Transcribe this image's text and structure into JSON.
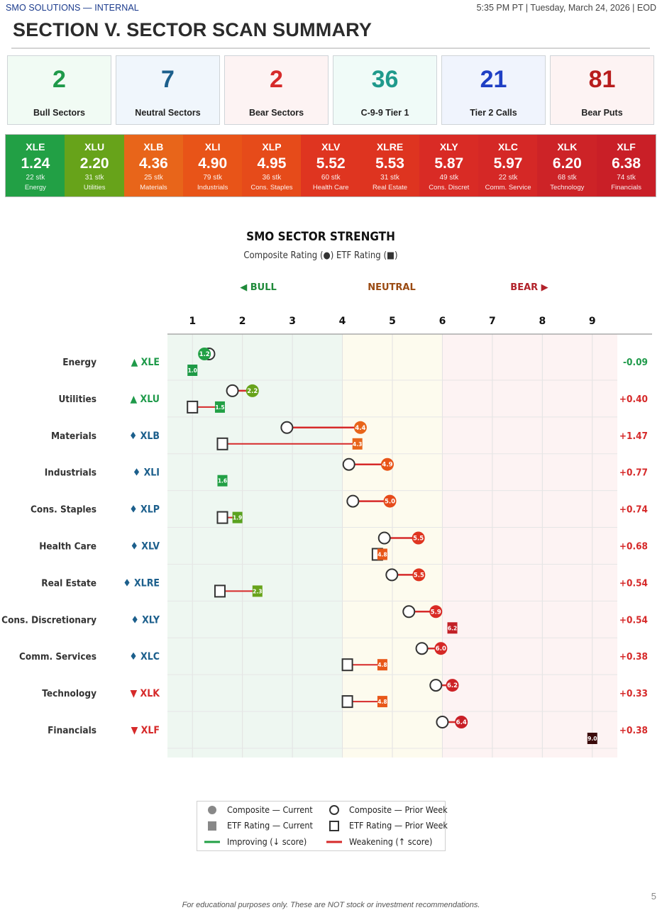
{
  "header": {
    "org": "SMO SOLUTIONS — INTERNAL",
    "timestamp": "5:35 PM PT | Tuesday, March 24, 2026 | EOD",
    "title": "SECTION V. SECTOR SCAN SUMMARY"
  },
  "stats": [
    {
      "value": "2",
      "label": "Bull Sectors",
      "color": "#1f9a4a",
      "bg": "#f1fbf4"
    },
    {
      "value": "7",
      "label": "Neutral Sectors",
      "color": "#1c5f8c",
      "bg": "#f0f6fc"
    },
    {
      "value": "2",
      "label": "Bear Sectors",
      "color": "#d62a2a",
      "bg": "#fdf3f3"
    },
    {
      "value": "36",
      "label": "C-9-9 Tier 1",
      "color": "#1f9a8c",
      "bg": "#f0fbf8"
    },
    {
      "value": "21",
      "label": "Tier 2 Calls",
      "color": "#1f3fc4",
      "bg": "#f0f4fd"
    },
    {
      "value": "81",
      "label": "Bear Puts",
      "color": "#b81d1d",
      "bg": "#fdf3f3"
    }
  ],
  "heatmap": [
    {
      "ticker": "XLE",
      "value": "1.24",
      "stocks": "22 stk",
      "name": "Energy",
      "color": "#22a045"
    },
    {
      "ticker": "XLU",
      "value": "2.20",
      "stocks": "31 stk",
      "name": "Utilities",
      "color": "#67a31a"
    },
    {
      "ticker": "XLB",
      "value": "4.36",
      "stocks": "25 stk",
      "name": "Materials",
      "color": "#e8651a"
    },
    {
      "ticker": "XLI",
      "value": "4.90",
      "stocks": "79 stk",
      "name": "Industrials",
      "color": "#e85418"
    },
    {
      "ticker": "XLP",
      "value": "4.95",
      "stocks": "36 stk",
      "name": "Cons. Staples",
      "color": "#e64b1a"
    },
    {
      "ticker": "XLV",
      "value": "5.52",
      "stocks": "60 stk",
      "name": "Health Care",
      "color": "#df3520"
    },
    {
      "ticker": "XLRE",
      "value": "5.53",
      "stocks": "31 stk",
      "name": "Real Estate",
      "color": "#de3420"
    },
    {
      "ticker": "XLY",
      "value": "5.87",
      "stocks": "49 stk",
      "name": "Cons. Discret",
      "color": "#d92b25"
    },
    {
      "ticker": "XLC",
      "value": "5.97",
      "stocks": "22 stk",
      "name": "Comm. Service",
      "color": "#d52826"
    },
    {
      "ticker": "XLK",
      "value": "6.20",
      "stocks": "68 stk",
      "name": "Technology",
      "color": "#cd2327"
    },
    {
      "ticker": "XLF",
      "value": "6.38",
      "stocks": "74 stk",
      "name": "Financials",
      "color": "#c91f27"
    }
  ],
  "chart_data": {
    "type": "scatter",
    "title": "SMO SECTOR STRENGTH",
    "subtitle": "Composite Rating (●)   ETF Rating (■)",
    "zones": [
      {
        "label": "◀ BULL",
        "range": [
          0.5,
          4
        ],
        "color": "#1f8a3a",
        "bg": "#eef7f1"
      },
      {
        "label": "NEUTRAL",
        "range": [
          4,
          6
        ],
        "color": "#9a4a12",
        "bg": "#fdfbee"
      },
      {
        "label": "BEAR ▶",
        "range": [
          6,
          9.5
        ],
        "color": "#b2222a",
        "bg": "#fdf3f3"
      }
    ],
    "xlim": [
      0.5,
      9.5
    ],
    "xticks": [
      "1",
      "2",
      "3",
      "4",
      "5",
      "6",
      "7",
      "8",
      "9"
    ],
    "grid": true,
    "legend_position": "bottom-center",
    "sectors": [
      {
        "name": "Energy",
        "signal": "▲",
        "ticker": "XLE",
        "signal_color": "#1f9a4a",
        "comp": 1.24,
        "comp_prior": 1.33,
        "comp_label": "1.2",
        "comp_color": "#22a045",
        "etf": 1.0,
        "etf_prior": null,
        "etf_label": "1.0",
        "etf_color": "#1e9a46",
        "change": "-0.09",
        "change_color": "#1f9a4a"
      },
      {
        "name": "Utilities",
        "signal": "▲",
        "ticker": "XLU",
        "signal_color": "#1f9a4a",
        "comp": 2.2,
        "comp_prior": 1.8,
        "comp_label": "2.2",
        "comp_color": "#67a31a",
        "etf": 1.55,
        "etf_prior": 1.0,
        "etf_label": "1.5",
        "etf_color": "#22a045",
        "change": "+0.40",
        "change_color": "#d62a2a"
      },
      {
        "name": "Materials",
        "signal": "♦",
        "ticker": "XLB",
        "signal_color": "#1c5f8c",
        "comp": 4.36,
        "comp_prior": 2.89,
        "comp_label": "4.4",
        "comp_color": "#e8651a",
        "etf": 4.3,
        "etf_prior": 1.6,
        "etf_label": "4.3",
        "etf_color": "#e8651a",
        "change": "+1.47",
        "change_color": "#d62a2a"
      },
      {
        "name": "Industrials",
        "signal": "♦",
        "ticker": "XLI",
        "signal_color": "#1c5f8c",
        "comp": 4.9,
        "comp_prior": 4.13,
        "comp_label": "4.9",
        "comp_color": "#e85418",
        "etf": 1.6,
        "etf_prior": null,
        "etf_label": "1.6",
        "etf_color": "#22a045",
        "change": "+0.77",
        "change_color": "#d62a2a"
      },
      {
        "name": "Cons. Staples",
        "signal": "♦",
        "ticker": "XLP",
        "signal_color": "#1c5f8c",
        "comp": 4.95,
        "comp_prior": 4.21,
        "comp_label": "5.0",
        "comp_color": "#e64b1a",
        "etf": 1.9,
        "etf_prior": 1.6,
        "etf_label": "1.9",
        "etf_color": "#59a21f",
        "change": "+0.74",
        "change_color": "#d62a2a"
      },
      {
        "name": "Health Care",
        "signal": "♦",
        "ticker": "XLV",
        "signal_color": "#1c5f8c",
        "comp": 5.52,
        "comp_prior": 4.84,
        "comp_label": "5.5",
        "comp_color": "#df3520",
        "etf": 4.8,
        "etf_prior": 4.7,
        "etf_label": "4.8",
        "etf_color": "#e8581a",
        "change": "+0.68",
        "change_color": "#d62a2a"
      },
      {
        "name": "Real Estate",
        "signal": "♦",
        "ticker": "XLRE",
        "signal_color": "#1c5f8c",
        "comp": 5.53,
        "comp_prior": 4.99,
        "comp_label": "5.5",
        "comp_color": "#de3420",
        "etf": 2.3,
        "etf_prior": 1.55,
        "etf_label": "2.3",
        "etf_color": "#67a31a",
        "change": "+0.54",
        "change_color": "#d62a2a"
      },
      {
        "name": "Cons. Discretionary",
        "signal": "♦",
        "ticker": "XLY",
        "signal_color": "#1c5f8c",
        "comp": 5.87,
        "comp_prior": 5.33,
        "comp_label": "5.9",
        "comp_color": "#d92b25",
        "etf": 6.2,
        "etf_prior": null,
        "etf_label": "6.2",
        "etf_color": "#c22026",
        "change": "+0.54",
        "change_color": "#d62a2a"
      },
      {
        "name": "Comm. Services",
        "signal": "♦",
        "ticker": "XLC",
        "signal_color": "#1c5f8c",
        "comp": 5.97,
        "comp_prior": 5.59,
        "comp_label": "6.0",
        "comp_color": "#d52826",
        "etf": 4.8,
        "etf_prior": 4.1,
        "etf_label": "4.8",
        "etf_color": "#e8581a",
        "change": "+0.38",
        "change_color": "#d62a2a"
      },
      {
        "name": "Technology",
        "signal": "▼",
        "ticker": "XLK",
        "signal_color": "#d62a2a",
        "comp": 6.2,
        "comp_prior": 5.87,
        "comp_label": "6.2",
        "comp_color": "#cd2327",
        "etf": 4.8,
        "etf_prior": 4.1,
        "etf_label": "4.8",
        "etf_color": "#e8581a",
        "change": "+0.33",
        "change_color": "#d62a2a"
      },
      {
        "name": "Financials",
        "signal": "▼",
        "ticker": "XLF",
        "signal_color": "#d62a2a",
        "comp": 6.38,
        "comp_prior": 6.0,
        "comp_label": "6.4",
        "comp_color": "#c91f27",
        "etf": 9.0,
        "etf_prior": null,
        "etf_label": "9.0",
        "etf_color": "#3a0a0a",
        "change": "+0.38",
        "change_color": "#d62a2a"
      }
    ],
    "legend": [
      {
        "symbol": "filled-circle",
        "label": "Composite — Current"
      },
      {
        "symbol": "hollow-circle",
        "label": "Composite — Prior Week"
      },
      {
        "symbol": "filled-square",
        "label": "ETF Rating — Current"
      },
      {
        "symbol": "hollow-square",
        "label": "ETF Rating — Prior Week"
      },
      {
        "symbol": "green-line",
        "label": "Improving (↓ score)"
      },
      {
        "symbol": "red-line",
        "label": "Weakening (↑ score)"
      }
    ]
  },
  "footer": {
    "page": "5",
    "disclaimer": "For educational purposes only. These are NOT stock or investment recommendations."
  }
}
